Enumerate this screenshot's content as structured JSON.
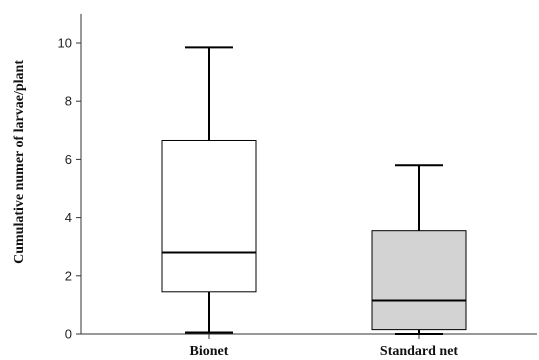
{
  "chart_data": {
    "type": "boxplot",
    "title": "",
    "xlabel": "",
    "ylabel": "Cumulative numer of larvae/plant",
    "ylim": [
      0,
      11
    ],
    "yticks": [
      0,
      2,
      4,
      6,
      8,
      10
    ],
    "grid": false,
    "legend": "none",
    "categories": [
      "Bionet",
      "Standard net"
    ],
    "boxes": [
      {
        "category": "Bionet",
        "min": 0.05,
        "q1": 1.45,
        "median": 2.8,
        "q3": 6.65,
        "max": 9.85,
        "fill": "#ffffff"
      },
      {
        "category": "Standard net",
        "min": 0.0,
        "q1": 0.15,
        "median": 1.15,
        "q3": 3.55,
        "max": 5.8,
        "fill": "#d3d3d3"
      }
    ]
  }
}
